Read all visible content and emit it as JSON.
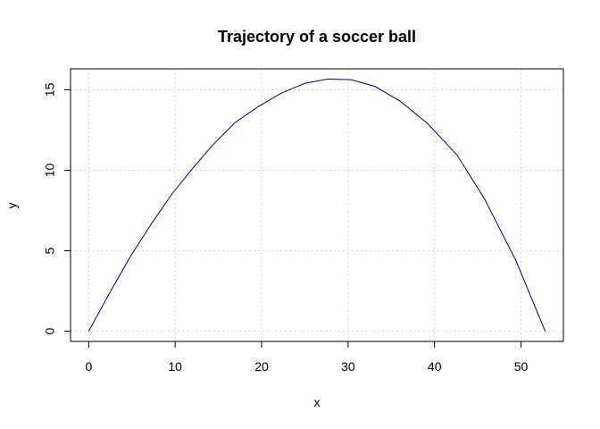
{
  "chart_data": {
    "type": "line",
    "title": "Trajectory of a soccer ball",
    "xlabel": "x",
    "ylabel": "y",
    "xlim": [
      -2.1,
      54.9
    ],
    "ylim": [
      -0.63,
      16.3
    ],
    "xticks": [
      0,
      10,
      20,
      30,
      40,
      50
    ],
    "yticks": [
      0,
      5,
      10,
      15
    ],
    "grid": true,
    "series": [
      {
        "color": "#00008B",
        "x": [
          0.0,
          2.49,
          4.93,
          7.32,
          9.66,
          12.0,
          14.4,
          16.9,
          19.6,
          22.3,
          25.0,
          27.7,
          30.4,
          33.1,
          36.0,
          39.2,
          42.6,
          45.8,
          49.4,
          52.8
        ],
        "y": [
          0.0,
          2.45,
          4.74,
          6.73,
          8.55,
          10.1,
          11.6,
          12.95,
          13.95,
          14.8,
          15.4,
          15.67,
          15.62,
          15.21,
          14.3,
          12.9,
          10.95,
          8.2,
          4.4,
          0.0
        ]
      }
    ]
  }
}
